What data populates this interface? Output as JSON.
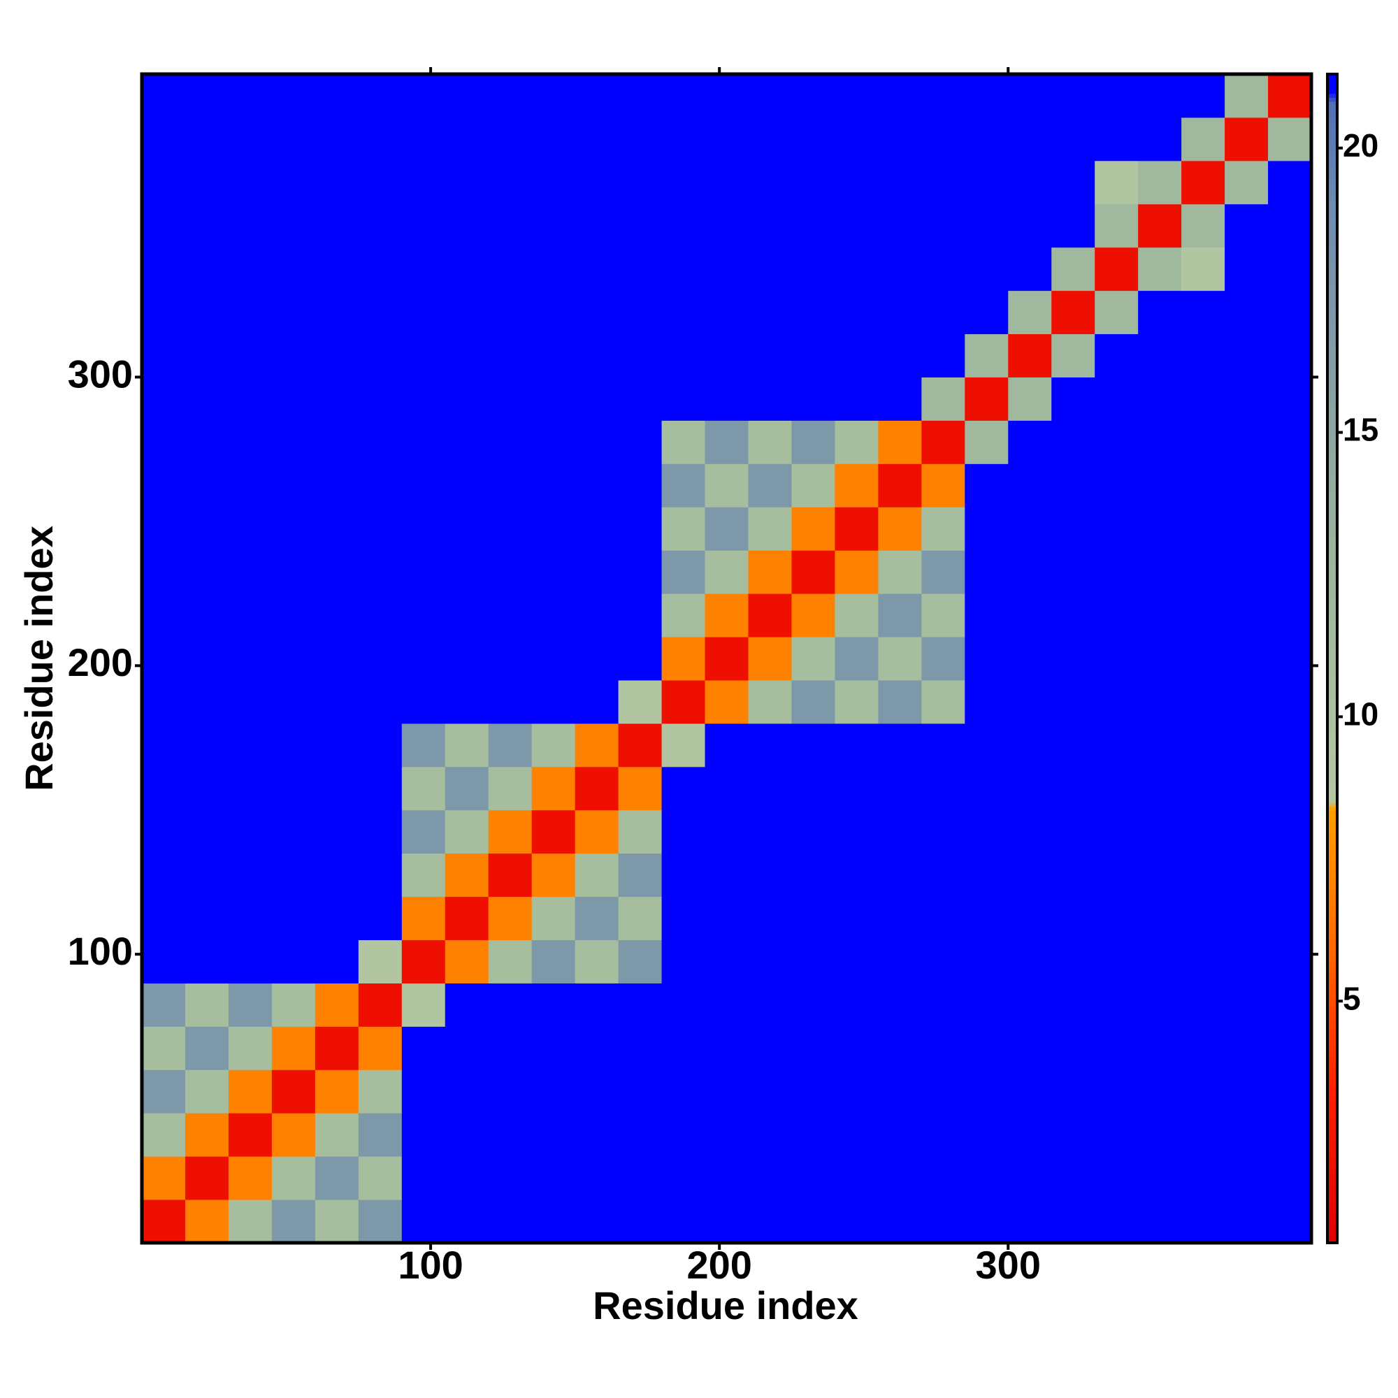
{
  "chart_data": {
    "type": "heatmap",
    "xlabel": "Residue index",
    "ylabel": "Residue index",
    "xbins": [
      0,
      15,
      30,
      45,
      60,
      75,
      90,
      105,
      120,
      135,
      150,
      165,
      180,
      195,
      210,
      225,
      240,
      255,
      270,
      285,
      300,
      315,
      330,
      345,
      360,
      375,
      390,
      405
    ],
    "ybins": [
      0,
      15,
      30,
      45,
      60,
      75,
      90,
      105,
      120,
      135,
      150,
      165,
      180,
      195,
      210,
      225,
      240,
      255,
      270,
      285,
      300,
      315,
      330,
      345,
      360,
      375,
      390,
      405
    ],
    "z": [
      [
        2,
        7,
        11,
        17,
        11,
        17,
        22,
        22,
        22,
        22,
        22,
        22,
        22,
        22,
        22,
        22,
        22,
        22,
        22,
        22,
        22,
        22,
        22,
        22,
        22,
        22,
        22
      ],
      [
        7,
        2,
        7,
        11,
        17,
        11,
        22,
        22,
        22,
        22,
        22,
        22,
        22,
        22,
        22,
        22,
        22,
        22,
        22,
        22,
        22,
        22,
        22,
        22,
        22,
        22,
        22
      ],
      [
        11,
        7,
        2,
        7,
        11,
        17,
        22,
        22,
        22,
        22,
        22,
        22,
        22,
        22,
        22,
        22,
        22,
        22,
        22,
        22,
        22,
        22,
        22,
        22,
        22,
        22,
        22
      ],
      [
        17,
        11,
        7,
        2,
        7,
        11,
        22,
        22,
        22,
        22,
        22,
        22,
        22,
        22,
        22,
        22,
        22,
        22,
        22,
        22,
        22,
        22,
        22,
        22,
        22,
        22,
        22
      ],
      [
        11,
        17,
        11,
        7,
        2,
        7,
        22,
        22,
        22,
        22,
        22,
        22,
        22,
        22,
        22,
        22,
        22,
        22,
        22,
        22,
        22,
        22,
        22,
        22,
        22,
        22,
        22
      ],
      [
        17,
        11,
        17,
        11,
        7,
        2,
        9,
        22,
        22,
        22,
        22,
        22,
        22,
        22,
        22,
        22,
        22,
        22,
        22,
        22,
        22,
        22,
        22,
        22,
        22,
        22,
        22
      ],
      [
        22,
        22,
        22,
        22,
        22,
        9,
        2,
        7,
        11,
        17,
        11,
        17,
        22,
        22,
        22,
        22,
        22,
        22,
        22,
        22,
        22,
        22,
        22,
        22,
        22,
        22,
        22
      ],
      [
        22,
        22,
        22,
        22,
        22,
        22,
        7,
        2,
        7,
        11,
        17,
        11,
        22,
        22,
        22,
        22,
        22,
        22,
        22,
        22,
        22,
        22,
        22,
        22,
        22,
        22,
        22
      ],
      [
        22,
        22,
        22,
        22,
        22,
        22,
        11,
        7,
        2,
        7,
        11,
        17,
        22,
        22,
        22,
        22,
        22,
        22,
        22,
        22,
        22,
        22,
        22,
        22,
        22,
        22,
        22
      ],
      [
        22,
        22,
        22,
        22,
        22,
        22,
        17,
        11,
        7,
        2,
        7,
        11,
        22,
        22,
        22,
        22,
        22,
        22,
        22,
        22,
        22,
        22,
        22,
        22,
        22,
        22,
        22
      ],
      [
        22,
        22,
        22,
        22,
        22,
        22,
        11,
        17,
        11,
        7,
        2,
        7,
        22,
        22,
        22,
        22,
        22,
        22,
        22,
        22,
        22,
        22,
        22,
        22,
        22,
        22,
        22
      ],
      [
        22,
        22,
        22,
        22,
        22,
        22,
        17,
        11,
        17,
        11,
        7,
        2,
        9,
        22,
        22,
        22,
        22,
        22,
        22,
        22,
        22,
        22,
        22,
        22,
        22,
        22,
        22
      ],
      [
        22,
        22,
        22,
        22,
        22,
        22,
        22,
        22,
        22,
        22,
        22,
        9,
        2,
        7,
        11,
        17,
        11,
        17,
        11,
        22,
        22,
        22,
        22,
        22,
        22,
        22,
        22
      ],
      [
        22,
        22,
        22,
        22,
        22,
        22,
        22,
        22,
        22,
        22,
        22,
        22,
        7,
        2,
        7,
        11,
        17,
        11,
        17,
        22,
        22,
        22,
        22,
        22,
        22,
        22,
        22
      ],
      [
        22,
        22,
        22,
        22,
        22,
        22,
        22,
        22,
        22,
        22,
        22,
        22,
        11,
        7,
        2,
        7,
        11,
        17,
        11,
        22,
        22,
        22,
        22,
        22,
        22,
        22,
        22
      ],
      [
        22,
        22,
        22,
        22,
        22,
        22,
        22,
        22,
        22,
        22,
        22,
        22,
        17,
        11,
        7,
        2,
        7,
        11,
        17,
        22,
        22,
        22,
        22,
        22,
        22,
        22,
        22
      ],
      [
        22,
        22,
        22,
        22,
        22,
        22,
        22,
        22,
        22,
        22,
        22,
        22,
        11,
        17,
        11,
        7,
        2,
        7,
        11,
        22,
        22,
        22,
        22,
        22,
        22,
        22,
        22
      ],
      [
        22,
        22,
        22,
        22,
        22,
        22,
        22,
        22,
        22,
        22,
        22,
        22,
        17,
        11,
        17,
        11,
        7,
        2,
        7,
        22,
        22,
        22,
        22,
        22,
        22,
        22,
        22
      ],
      [
        22,
        22,
        22,
        22,
        22,
        22,
        22,
        22,
        22,
        22,
        22,
        22,
        11,
        17,
        11,
        17,
        11,
        7,
        2,
        12,
        22,
        22,
        22,
        22,
        22,
        22,
        22
      ],
      [
        22,
        22,
        22,
        22,
        22,
        22,
        22,
        22,
        22,
        22,
        22,
        22,
        22,
        22,
        22,
        22,
        22,
        22,
        12,
        2,
        12,
        22,
        22,
        22,
        22,
        22,
        22
      ],
      [
        22,
        22,
        22,
        22,
        22,
        22,
        22,
        22,
        22,
        22,
        22,
        22,
        22,
        22,
        22,
        22,
        22,
        22,
        22,
        12,
        2,
        12,
        22,
        22,
        22,
        22,
        22
      ],
      [
        22,
        22,
        22,
        22,
        22,
        22,
        22,
        22,
        22,
        22,
        22,
        22,
        22,
        22,
        22,
        22,
        22,
        22,
        22,
        22,
        12,
        2,
        12,
        22,
        22,
        22,
        22
      ],
      [
        22,
        22,
        22,
        22,
        22,
        22,
        22,
        22,
        22,
        22,
        22,
        22,
        22,
        22,
        22,
        22,
        22,
        22,
        22,
        22,
        22,
        12,
        2,
        12,
        9,
        22,
        22
      ],
      [
        22,
        22,
        22,
        22,
        22,
        22,
        22,
        22,
        22,
        22,
        22,
        22,
        22,
        22,
        22,
        22,
        22,
        22,
        22,
        22,
        22,
        22,
        12,
        2,
        12,
        22,
        22
      ],
      [
        22,
        22,
        22,
        22,
        22,
        22,
        22,
        22,
        22,
        22,
        22,
        22,
        22,
        22,
        22,
        22,
        22,
        22,
        22,
        22,
        22,
        22,
        9,
        12,
        2,
        12,
        22
      ],
      [
        22,
        22,
        22,
        22,
        22,
        22,
        22,
        22,
        22,
        22,
        22,
        22,
        22,
        22,
        22,
        22,
        22,
        22,
        22,
        22,
        22,
        22,
        22,
        22,
        12,
        2,
        12
      ],
      [
        22,
        22,
        22,
        22,
        22,
        22,
        22,
        22,
        22,
        22,
        22,
        22,
        22,
        22,
        22,
        22,
        22,
        22,
        22,
        22,
        22,
        22,
        22,
        22,
        22,
        12,
        2
      ]
    ],
    "xlim": [
      0,
      405
    ],
    "ylim": [
      0,
      405
    ],
    "xticks": [
      100,
      200,
      300
    ],
    "yticks": [
      100,
      200,
      300
    ],
    "clim": [
      0.75,
      21.3
    ],
    "cticks": [
      5,
      10,
      15,
      20
    ],
    "colorscale": [
      [
        0.75,
        "#e00000"
      ],
      [
        3.5,
        "#ff2000"
      ],
      [
        6,
        "#ff6a00"
      ],
      [
        8.4,
        "#ffa000"
      ],
      [
        8.5,
        "#b4c8a0"
      ],
      [
        13,
        "#9ab49c"
      ],
      [
        19,
        "#6e8cb0"
      ],
      [
        20.8,
        "#5070b8"
      ],
      [
        21,
        "#0000ff"
      ],
      [
        21.3,
        "#0000ff"
      ]
    ]
  }
}
